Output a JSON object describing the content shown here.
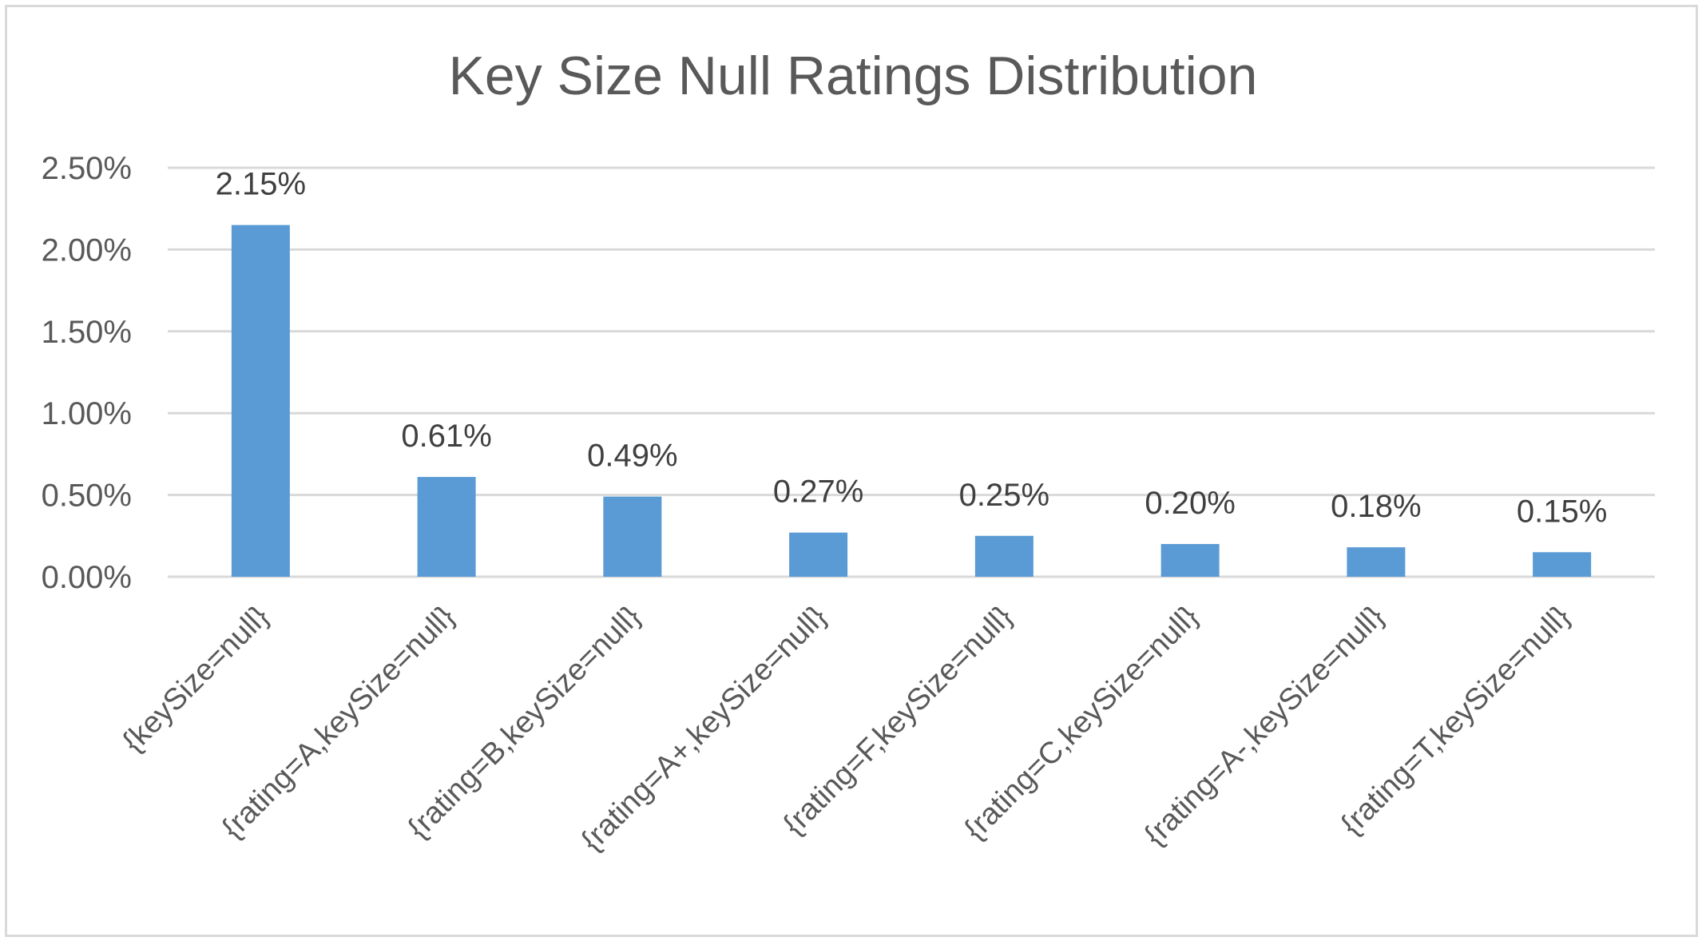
{
  "chart_data": {
    "type": "bar",
    "title": "Key Size Null Ratings Distribution",
    "xlabel": "",
    "ylabel": "",
    "categories": [
      "{keySize=null}",
      "{rating=A,keySize=null}",
      "{rating=B,keySize=null}",
      "{rating=A+,keySize=null}",
      "{rating=F,keySize=null}",
      "{rating=C,keySize=null}",
      "{rating=A-,keySize=null}",
      "{rating=T,keySize=null}"
    ],
    "values": [
      2.15,
      0.61,
      0.49,
      0.27,
      0.25,
      0.2,
      0.18,
      0.15
    ],
    "data_labels": [
      "2.15%",
      "0.61%",
      "0.49%",
      "0.27%",
      "0.25%",
      "0.20%",
      "0.18%",
      "0.15%"
    ],
    "ylim": [
      0,
      2.5
    ],
    "y_ticks": [
      0,
      0.5,
      1.0,
      1.5,
      2.0,
      2.5
    ],
    "y_tick_labels": [
      "0.00%",
      "0.50%",
      "1.00%",
      "1.50%",
      "2.00%",
      "2.50%"
    ],
    "grid": true,
    "legend": "none",
    "colors": {
      "bar": "#5b9bd5",
      "grid": "#d9d9d9",
      "text": "#595959",
      "label": "#404040"
    }
  }
}
